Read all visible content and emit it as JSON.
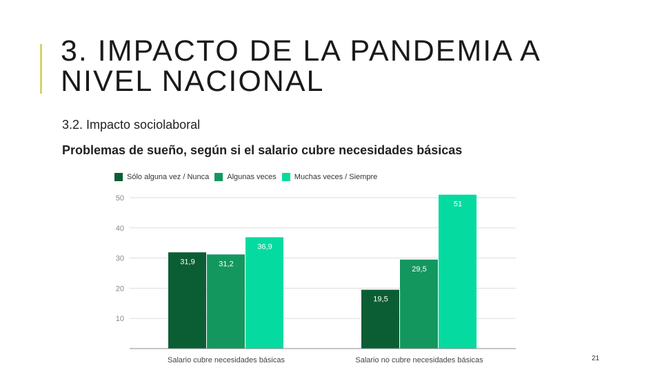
{
  "slide": {
    "title": "3. IMPACTO DE LA PANDEMIA A NIVEL NACIONAL",
    "subtitle": "3.2. Impacto sociolaboral",
    "chart_heading": "Problemas de sueño, según si el salario cubre necesidades básicas",
    "page_number": "21",
    "accent_color": "#d9cf6b"
  },
  "chart_data": {
    "type": "bar",
    "categories": [
      "Salario cubre necesidades básicas",
      "Salario no cubre necesidades básicas"
    ],
    "series": [
      {
        "name": "Sólo alguna vez / Nunca",
        "values": [
          31.9,
          19.5
        ],
        "labels": [
          "31,9",
          "19,5"
        ],
        "color": "#0b5e33"
      },
      {
        "name": "Algunas veces",
        "values": [
          31.2,
          29.5
        ],
        "labels": [
          "31,2",
          "29,5"
        ],
        "color": "#14975f"
      },
      {
        "name": "Muchas veces / Siempre",
        "values": [
          36.9,
          51
        ],
        "labels": [
          "36,9",
          "51"
        ],
        "color": "#05dba0"
      }
    ],
    "y_ticks": [
      "10",
      "20",
      "30",
      "40",
      "50"
    ],
    "ylim": [
      0,
      50
    ],
    "grid": true,
    "legend_position": "top-left"
  }
}
